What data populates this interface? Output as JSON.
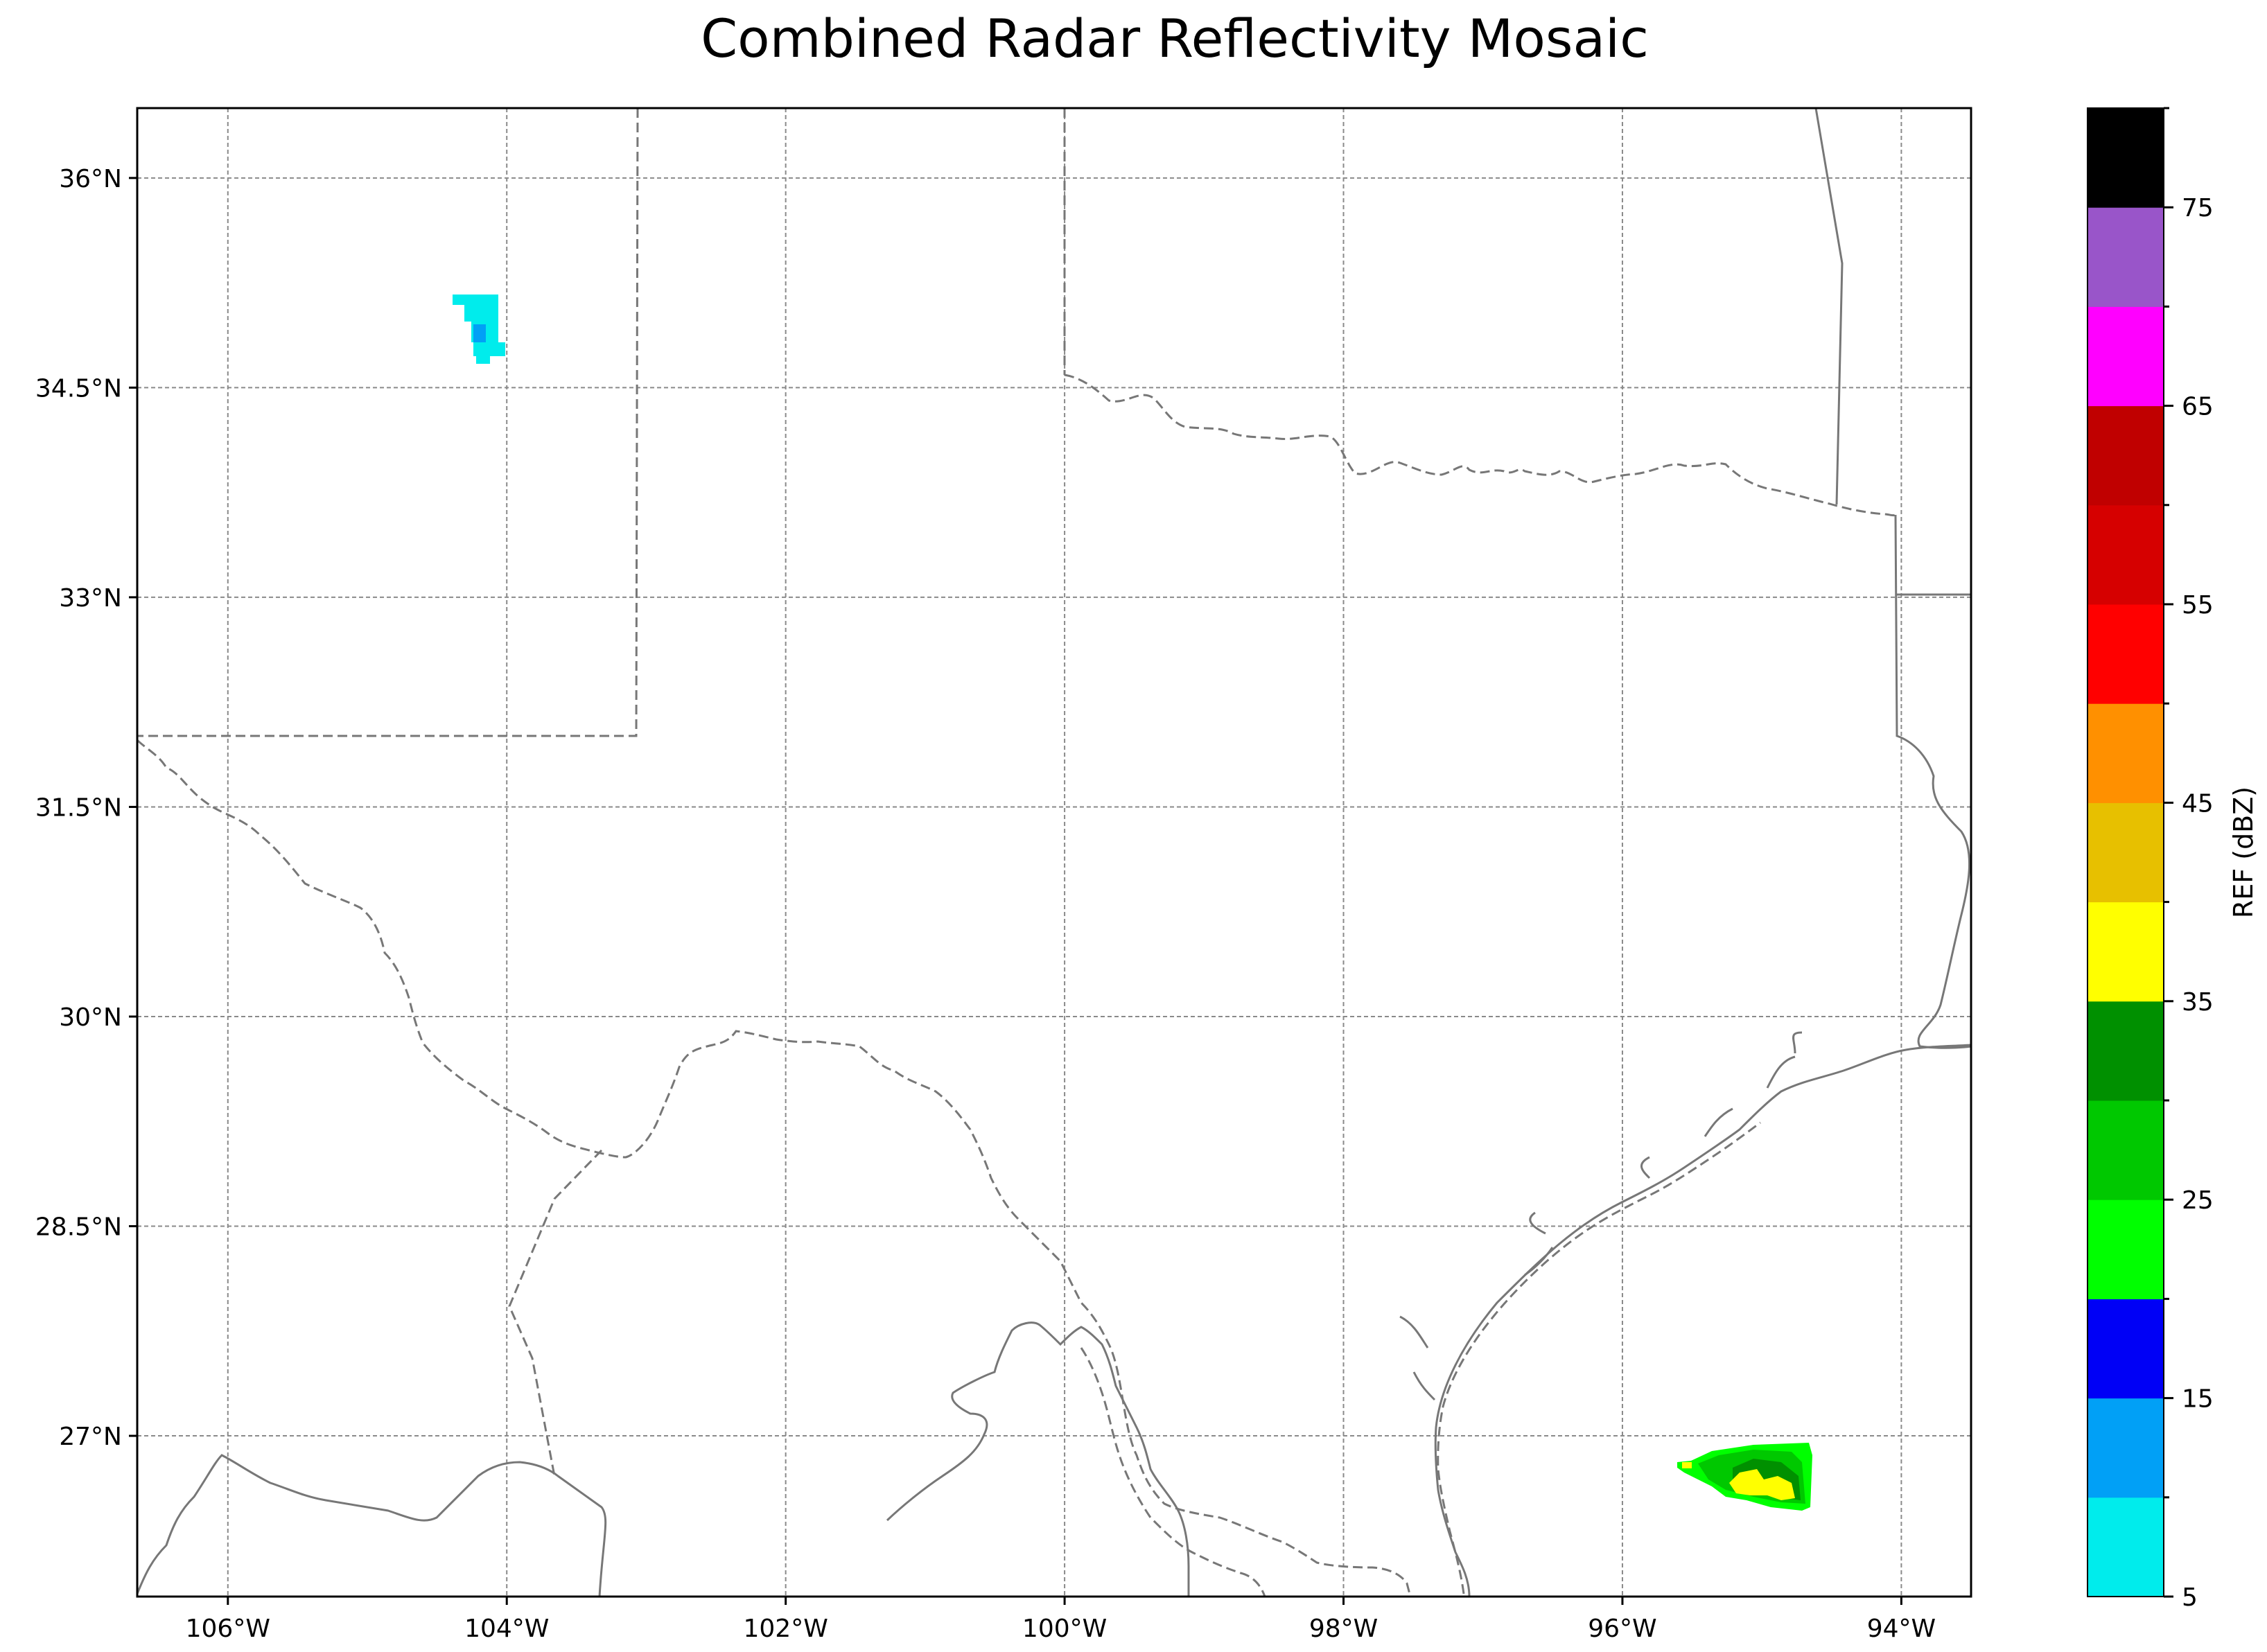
{
  "title": "Combined Radar Reflectivity Mosaic",
  "map": {
    "lon_range": [
      -106.65,
      -93.5
    ],
    "lat_range": [
      25.85,
      36.5
    ],
    "lon_ticks": [
      {
        "value": -106,
        "label": "106°W"
      },
      {
        "value": -104,
        "label": "104°W"
      },
      {
        "value": -102,
        "label": "102°W"
      },
      {
        "value": -100,
        "label": "100°W"
      },
      {
        "value": -98,
        "label": "98°W"
      },
      {
        "value": -96,
        "label": "96°W"
      },
      {
        "value": -94,
        "label": "94°W"
      }
    ],
    "lat_ticks": [
      {
        "value": 36,
        "label": "36°N"
      },
      {
        "value": 34.5,
        "label": "34.5°N"
      },
      {
        "value": 33,
        "label": "33°N"
      },
      {
        "value": 31.5,
        "label": "31.5°N"
      },
      {
        "value": 30,
        "label": "30°N"
      },
      {
        "value": 28.5,
        "label": "28.5°N"
      },
      {
        "value": 27,
        "label": "27°N"
      }
    ],
    "gridlines": true,
    "line_color": "#777777"
  },
  "colorbar": {
    "label": "REF (dBZ)",
    "bounds": [
      5,
      80
    ],
    "step": 5,
    "colors": [
      "#00ecec",
      "#01a0f6",
      "#0000f6",
      "#00ff00",
      "#00c800",
      "#009000",
      "#ffff00",
      "#e7c000",
      "#ff9000",
      "#ff0000",
      "#d60000",
      "#c00000",
      "#ff00ff",
      "#9955c9",
      "#000000"
    ],
    "tick_values": [
      5,
      15,
      25,
      35,
      45,
      55,
      65,
      75
    ],
    "tick_labels": [
      "5",
      "15",
      "25",
      "35",
      "45",
      "55",
      "65",
      "75"
    ]
  },
  "echoes": [
    {
      "name": "new-mexico-echo",
      "max_dbz_color": "#01a0f6"
    },
    {
      "name": "gulf-echo",
      "max_dbz_color": "#ffff00"
    }
  ]
}
